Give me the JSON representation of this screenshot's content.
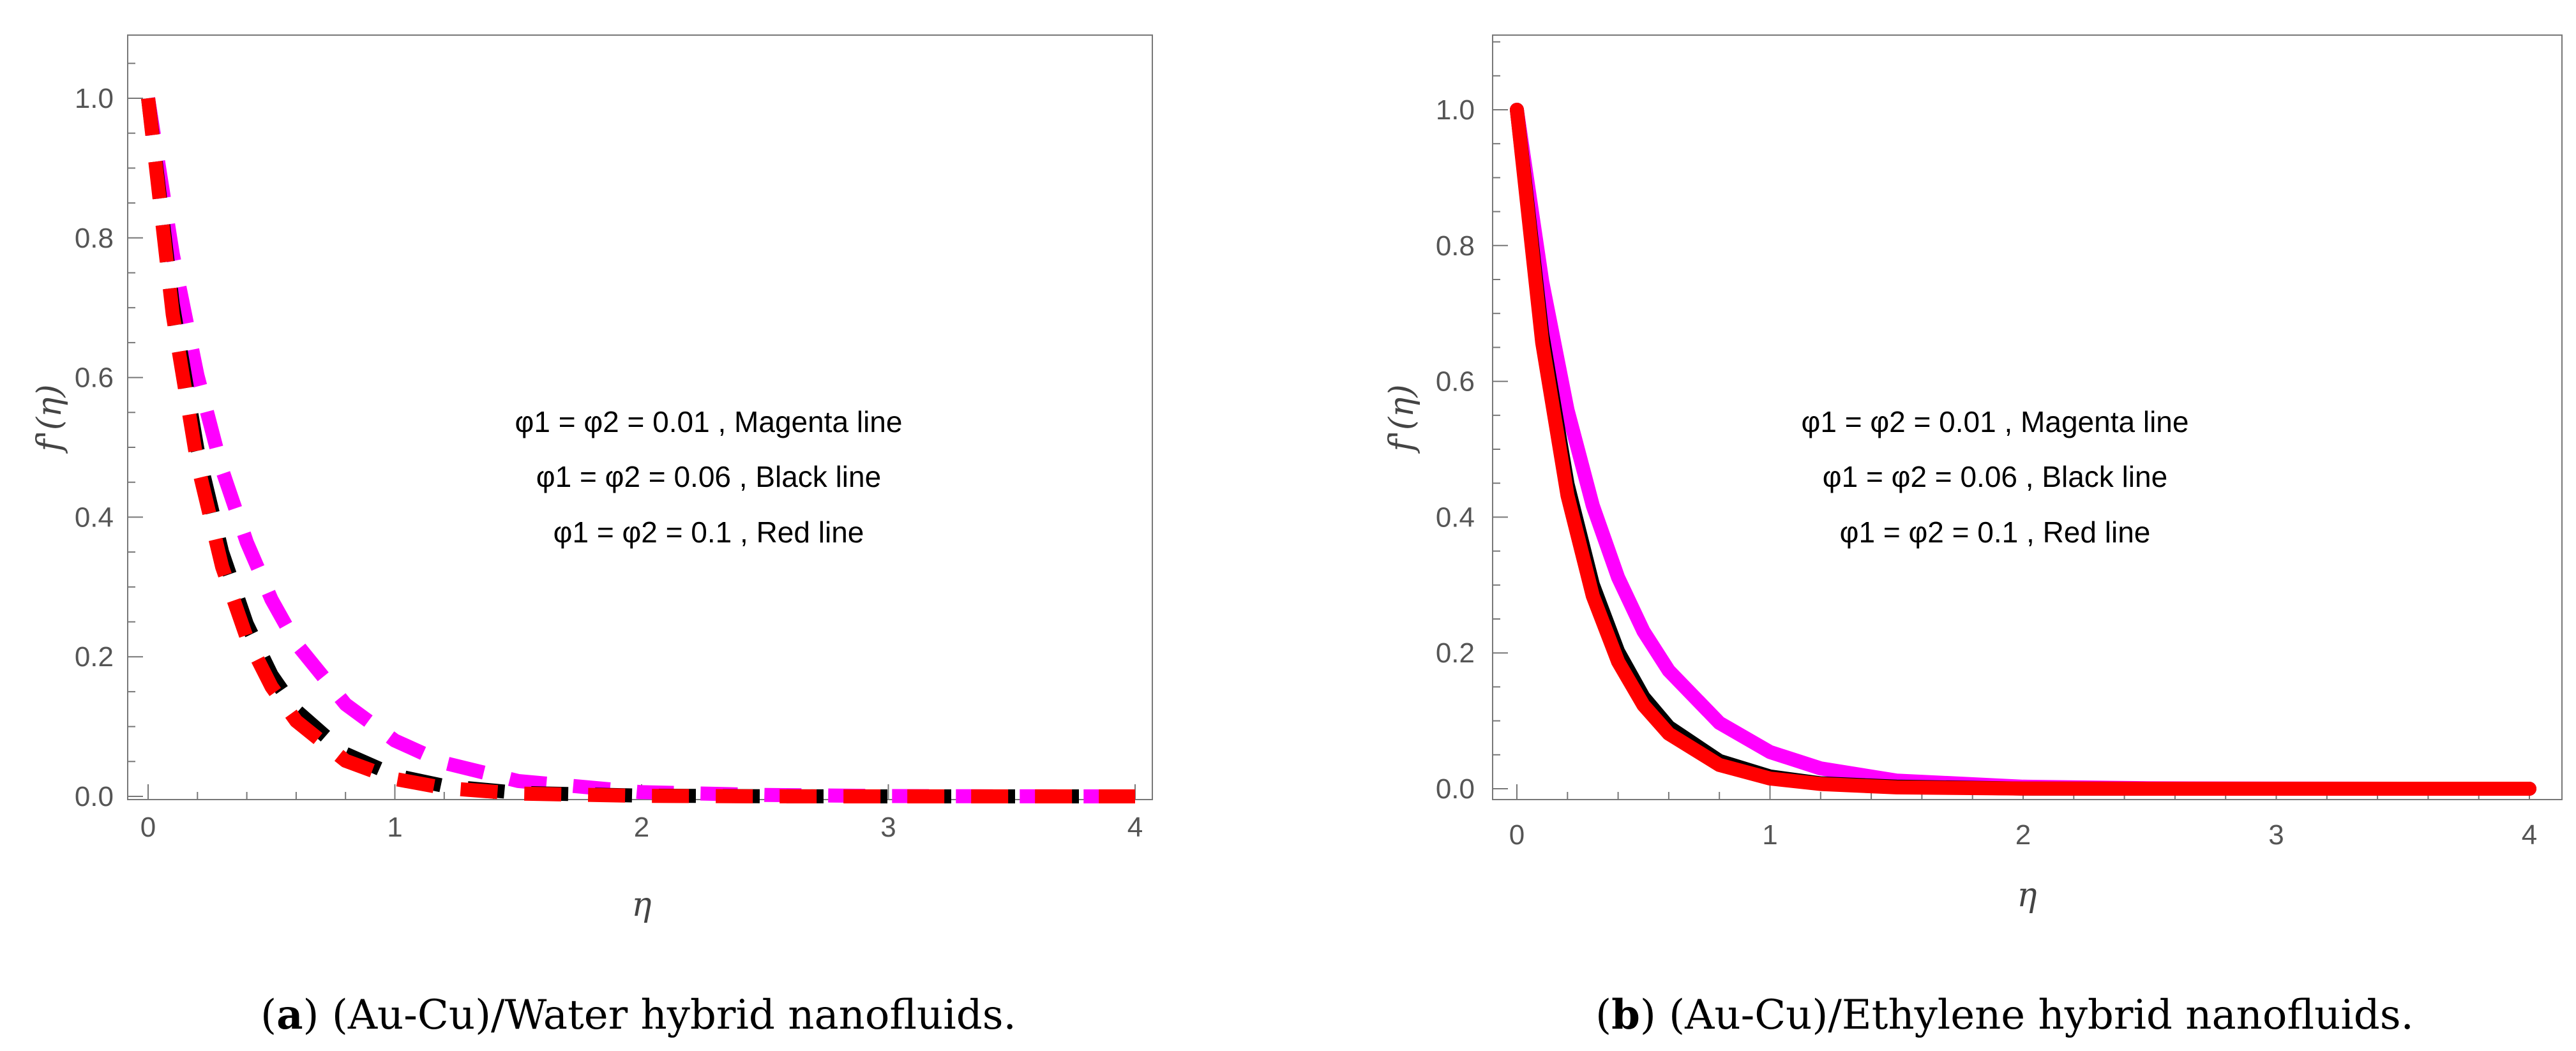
{
  "chart_data": [
    {
      "type": "line",
      "style": "dashed",
      "panel": "a",
      "caption_label": "a",
      "caption_text": "(Au-Cu)/Water hybrid nanofluids.",
      "xlabel": "η",
      "ylabel": "f'(η)",
      "xlim": [
        0,
        4
      ],
      "ylim": [
        0,
        1.1
      ],
      "xticks": [
        "0",
        "1",
        "2",
        "3",
        "4"
      ],
      "yticks": [
        "0.0",
        "0.2",
        "0.4",
        "0.6",
        "0.8",
        "1.0"
      ],
      "legend_lines": [
        "φ1 = φ2 = 0.01 , Magenta line",
        "φ1 = φ2 = 0.06 , Black line",
        "φ1 = φ2 = 0.1 , Red line"
      ],
      "x": [
        0,
        0.1,
        0.2,
        0.3,
        0.4,
        0.5,
        0.6,
        0.8,
        1.0,
        1.2,
        1.5,
        2.0,
        2.5,
        3.0,
        3.5,
        4.0
      ],
      "series": [
        {
          "name": "φ1 = φ2 = 0.01",
          "color": "#ff00ff",
          "values": [
            1.0,
            0.777,
            0.603,
            0.468,
            0.364,
            0.282,
            0.219,
            0.132,
            0.08,
            0.048,
            0.022,
            0.006,
            0.002,
            0.0005,
            0.0001,
            0.0
          ]
        },
        {
          "name": "φ1 = φ2 = 0.06",
          "color": "#000000",
          "values": [
            1.0,
            0.705,
            0.497,
            0.35,
            0.247,
            0.174,
            0.123,
            0.061,
            0.03,
            0.015,
            0.005,
            0.001,
            0.0002,
            0.0,
            0.0,
            0.0
          ]
        },
        {
          "name": "φ1 = φ2 = 0.1",
          "color": "#ff0000",
          "values": [
            1.0,
            0.69,
            0.476,
            0.329,
            0.227,
            0.157,
            0.108,
            0.051,
            0.025,
            0.012,
            0.004,
            0.0007,
            0.0001,
            0.0,
            0.0,
            0.0
          ]
        }
      ]
    },
    {
      "type": "line",
      "style": "solid",
      "panel": "b",
      "caption_label": "b",
      "caption_text": "(Au-Cu)/Ethylene hybrid nanofluids.",
      "xlabel": "η",
      "ylabel": "f'(η)",
      "xlim": [
        0,
        4
      ],
      "ylim": [
        0,
        1.1
      ],
      "xticks": [
        "0",
        "1",
        "2",
        "3",
        "4"
      ],
      "yticks": [
        "0.0",
        "0.2",
        "0.4",
        "0.6",
        "0.8",
        "1.0"
      ],
      "legend_lines": [
        "φ1 = φ2 = 0.01 , Magenta line",
        "φ1 = φ2 = 0.06 , Black line",
        "φ1 = φ2 = 0.1 , Red line"
      ],
      "x": [
        0,
        0.1,
        0.2,
        0.3,
        0.4,
        0.5,
        0.6,
        0.8,
        1.0,
        1.2,
        1.5,
        2.0,
        2.5,
        3.0,
        3.5,
        4.0
      ],
      "series": [
        {
          "name": "φ1 = φ2 = 0.01",
          "color": "#ff00ff",
          "values": [
            1.0,
            0.747,
            0.558,
            0.417,
            0.311,
            0.232,
            0.174,
            0.097,
            0.054,
            0.03,
            0.012,
            0.003,
            0.0007,
            0.0002,
            0.0,
            0.0
          ]
        },
        {
          "name": "φ1 = φ2 = 0.06",
          "color": "#000000",
          "values": [
            1.0,
            0.67,
            0.449,
            0.301,
            0.202,
            0.135,
            0.091,
            0.041,
            0.018,
            0.008,
            0.003,
            0.0003,
            0.0,
            0.0,
            0.0,
            0.0
          ]
        },
        {
          "name": "φ1 = φ2 = 0.1",
          "color": "#ff0000",
          "values": [
            1.0,
            0.657,
            0.432,
            0.284,
            0.187,
            0.123,
            0.081,
            0.035,
            0.015,
            0.007,
            0.002,
            0.0002,
            0.0,
            0.0,
            0.0,
            0.0
          ]
        }
      ]
    }
  ]
}
